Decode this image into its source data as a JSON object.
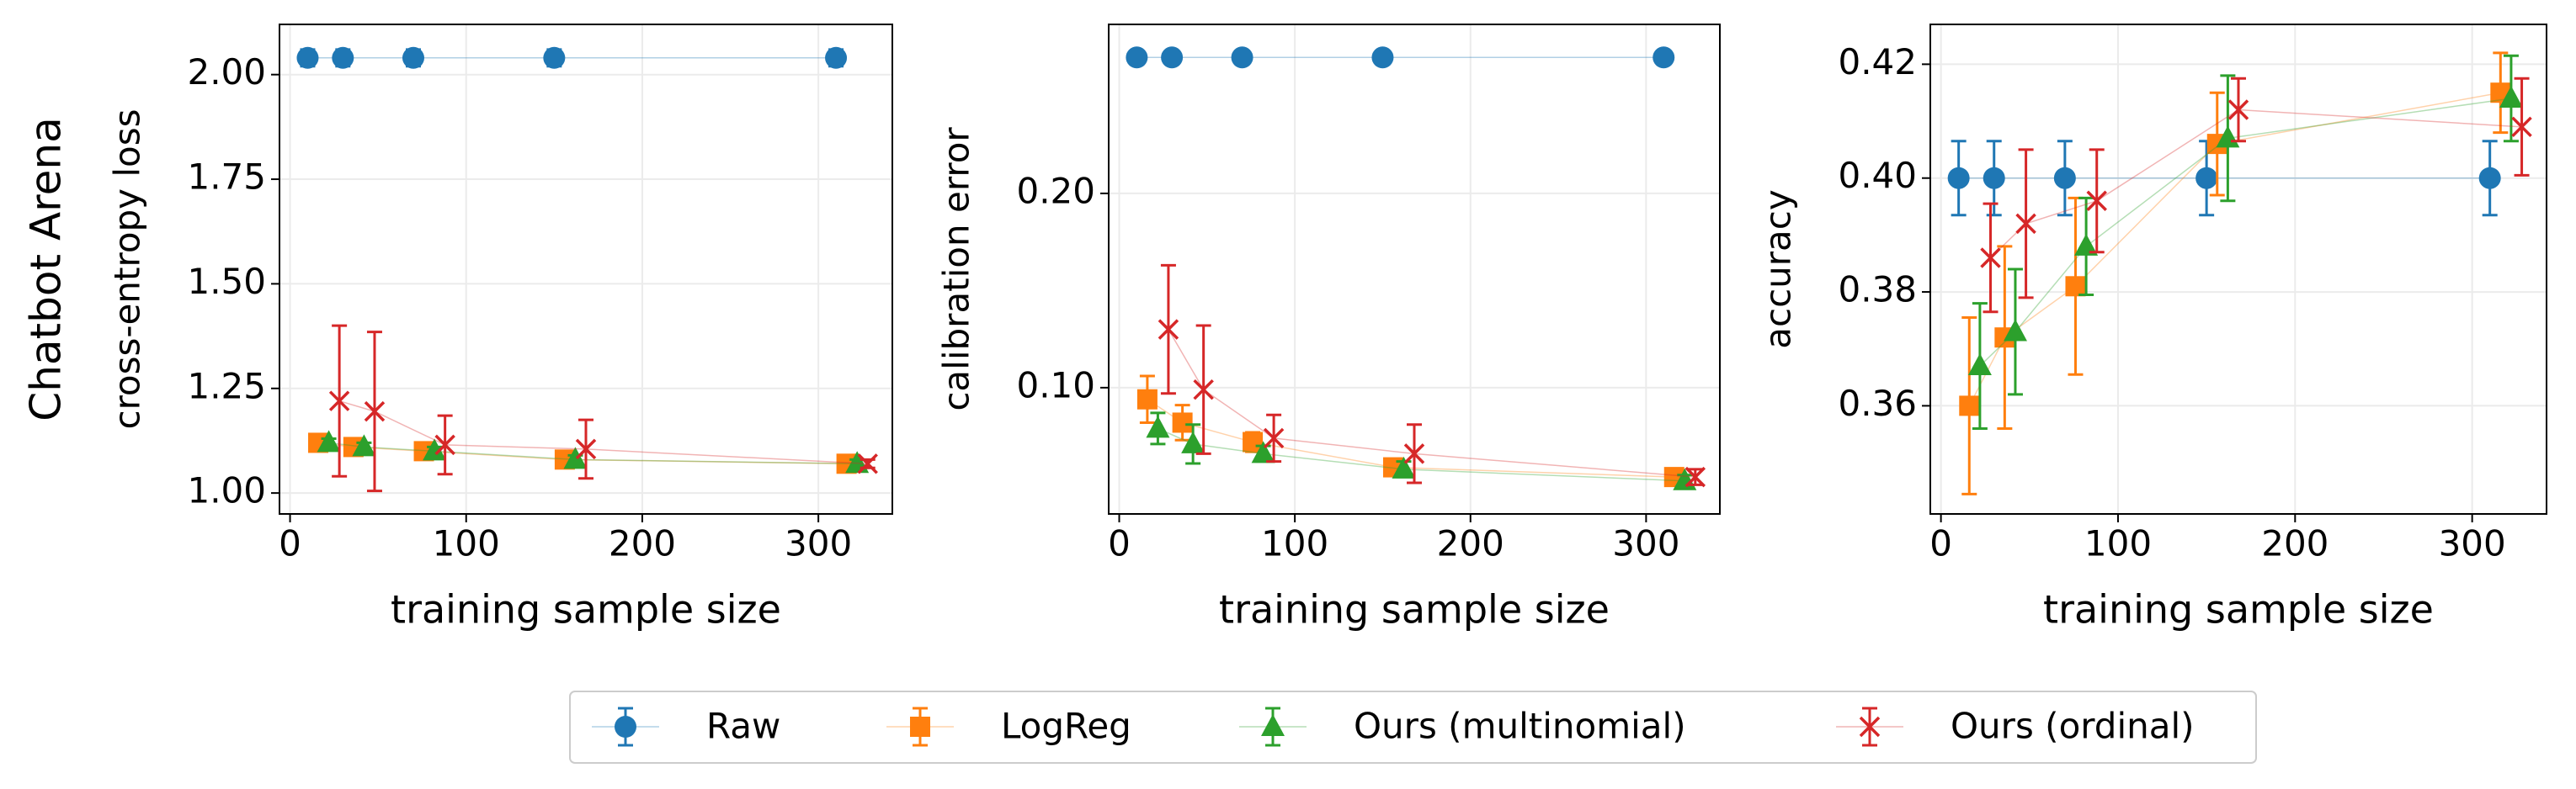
{
  "row_label": "Chatbot Arena",
  "chart_data": [
    {
      "type": "errorbar",
      "ylabel": "cross-entropy loss",
      "xlabel": "training sample size",
      "xlim": [
        -6,
        342
      ],
      "xticks": [
        0,
        100,
        200,
        300
      ],
      "ylim": [
        0.95,
        2.12
      ],
      "yticks": [
        {
          "value": 1,
          "label": "1.00"
        },
        1.25,
        {
          "value": 1.5,
          "label": "1.50"
        },
        1.75,
        {
          "value": 2,
          "label": "2.00"
        }
      ],
      "grid": true,
      "series": [
        {
          "name": "Raw",
          "color": "#1f77b4",
          "marker": "circle",
          "x": [
            10,
            30,
            70,
            150,
            310
          ],
          "values": [
            2.04,
            2.04,
            2.04,
            2.04,
            2.04
          ],
          "errors": [
            0.02,
            0.02,
            0.02,
            0.02,
            0.02
          ]
        },
        {
          "name": "LogReg",
          "color": "#ff7f0e",
          "marker": "square",
          "x": [
            16,
            36,
            76,
            156,
            316
          ],
          "values": [
            1.12,
            1.11,
            1.1,
            1.08,
            1.07
          ],
          "errors": [
            0.01,
            0.01,
            0.01,
            0.01,
            0.01
          ]
        },
        {
          "name": "Ours (multinomial)",
          "color": "#2ca02c",
          "marker": "triangle",
          "x": [
            22,
            42,
            82,
            162,
            322
          ],
          "values": [
            1.12,
            1.11,
            1.1,
            1.08,
            1.07
          ],
          "errors": [
            0.01,
            0.01,
            0.01,
            0.01,
            0.01
          ]
        },
        {
          "name": "Ours (ordinal)",
          "color": "#d62728",
          "marker": "x",
          "x": [
            28,
            48,
            88,
            168,
            328
          ],
          "values": [
            1.22,
            1.195,
            1.115,
            1.105,
            1.07
          ],
          "errors": [
            0.18,
            0.19,
            0.07,
            0.07,
            0.01
          ]
        }
      ]
    },
    {
      "type": "errorbar",
      "ylabel": "calibration error",
      "xlabel": "training sample size",
      "xlim": [
        -6,
        342
      ],
      "xticks": [
        0,
        100,
        200,
        300
      ],
      "ylim": [
        0.035,
        0.287
      ],
      "yticks": [
        {
          "value": 0.1,
          "label": "0.10"
        },
        {
          "value": 0.2,
          "label": "0.20"
        }
      ],
      "grid": true,
      "series": [
        {
          "color": "#1f77b4",
          "marker": "circle",
          "x": [
            10,
            30,
            70,
            150,
            310
          ],
          "values": [
            0.27,
            0.27,
            0.27,
            0.27,
            0.27
          ],
          "errors": [
            0.003,
            0.003,
            0.003,
            0.003,
            0.003
          ]
        },
        {
          "color": "#ff7f0e",
          "marker": "square",
          "x": [
            16,
            36,
            76,
            156,
            316
          ],
          "values": [
            0.094,
            0.082,
            0.072,
            0.059,
            0.054
          ],
          "errors": [
            0.012,
            0.009,
            0.005,
            0.004,
            0.003
          ]
        },
        {
          "color": "#2ca02c",
          "marker": "triangle",
          "x": [
            22,
            42,
            82,
            162,
            322
          ],
          "values": [
            0.079,
            0.071,
            0.066,
            0.058,
            0.052
          ],
          "errors": [
            0.008,
            0.01,
            0.004,
            0.004,
            0.003
          ]
        },
        {
          "color": "#d62728",
          "marker": "x",
          "x": [
            28,
            48,
            88,
            168,
            328
          ],
          "values": [
            0.13,
            0.099,
            0.074,
            0.066,
            0.054
          ],
          "errors": [
            0.033,
            0.033,
            0.012,
            0.015,
            0.004
          ]
        }
      ]
    },
    {
      "type": "errorbar",
      "ylabel": "accuracy",
      "xlabel": "training sample size",
      "xlim": [
        -6,
        342
      ],
      "xticks": [
        0,
        100,
        200,
        300
      ],
      "ylim": [
        0.341,
        0.427
      ],
      "yticks": [
        0.36,
        0.38,
        {
          "value": 0.4,
          "label": "0.40"
        },
        0.42
      ],
      "grid": true,
      "series": [
        {
          "color": "#1f77b4",
          "marker": "circle",
          "x": [
            10,
            30,
            70,
            150,
            310
          ],
          "values": [
            0.4,
            0.4,
            0.4,
            0.4,
            0.4
          ],
          "errors": [
            0.0065,
            0.0065,
            0.0065,
            0.0065,
            0.0065
          ]
        },
        {
          "color": "#ff7f0e",
          "marker": "square",
          "x": [
            16,
            36,
            76,
            156,
            316
          ],
          "values": [
            0.36,
            0.372,
            0.381,
            0.406,
            0.415
          ],
          "errors": [
            0.0155,
            0.016,
            0.0155,
            0.009,
            0.007
          ]
        },
        {
          "color": "#2ca02c",
          "marker": "triangle",
          "x": [
            22,
            42,
            82,
            162,
            322
          ],
          "values": [
            0.367,
            0.373,
            0.388,
            0.407,
            0.414
          ],
          "errors": [
            0.011,
            0.011,
            0.0085,
            0.011,
            0.0075
          ]
        },
        {
          "color": "#d62728",
          "marker": "x",
          "x": [
            28,
            48,
            88,
            168,
            328
          ],
          "values": [
            0.386,
            0.392,
            0.396,
            0.412,
            0.409
          ],
          "errors": [
            0.0095,
            0.013,
            0.009,
            0.0055,
            0.0085
          ]
        }
      ]
    }
  ]
}
